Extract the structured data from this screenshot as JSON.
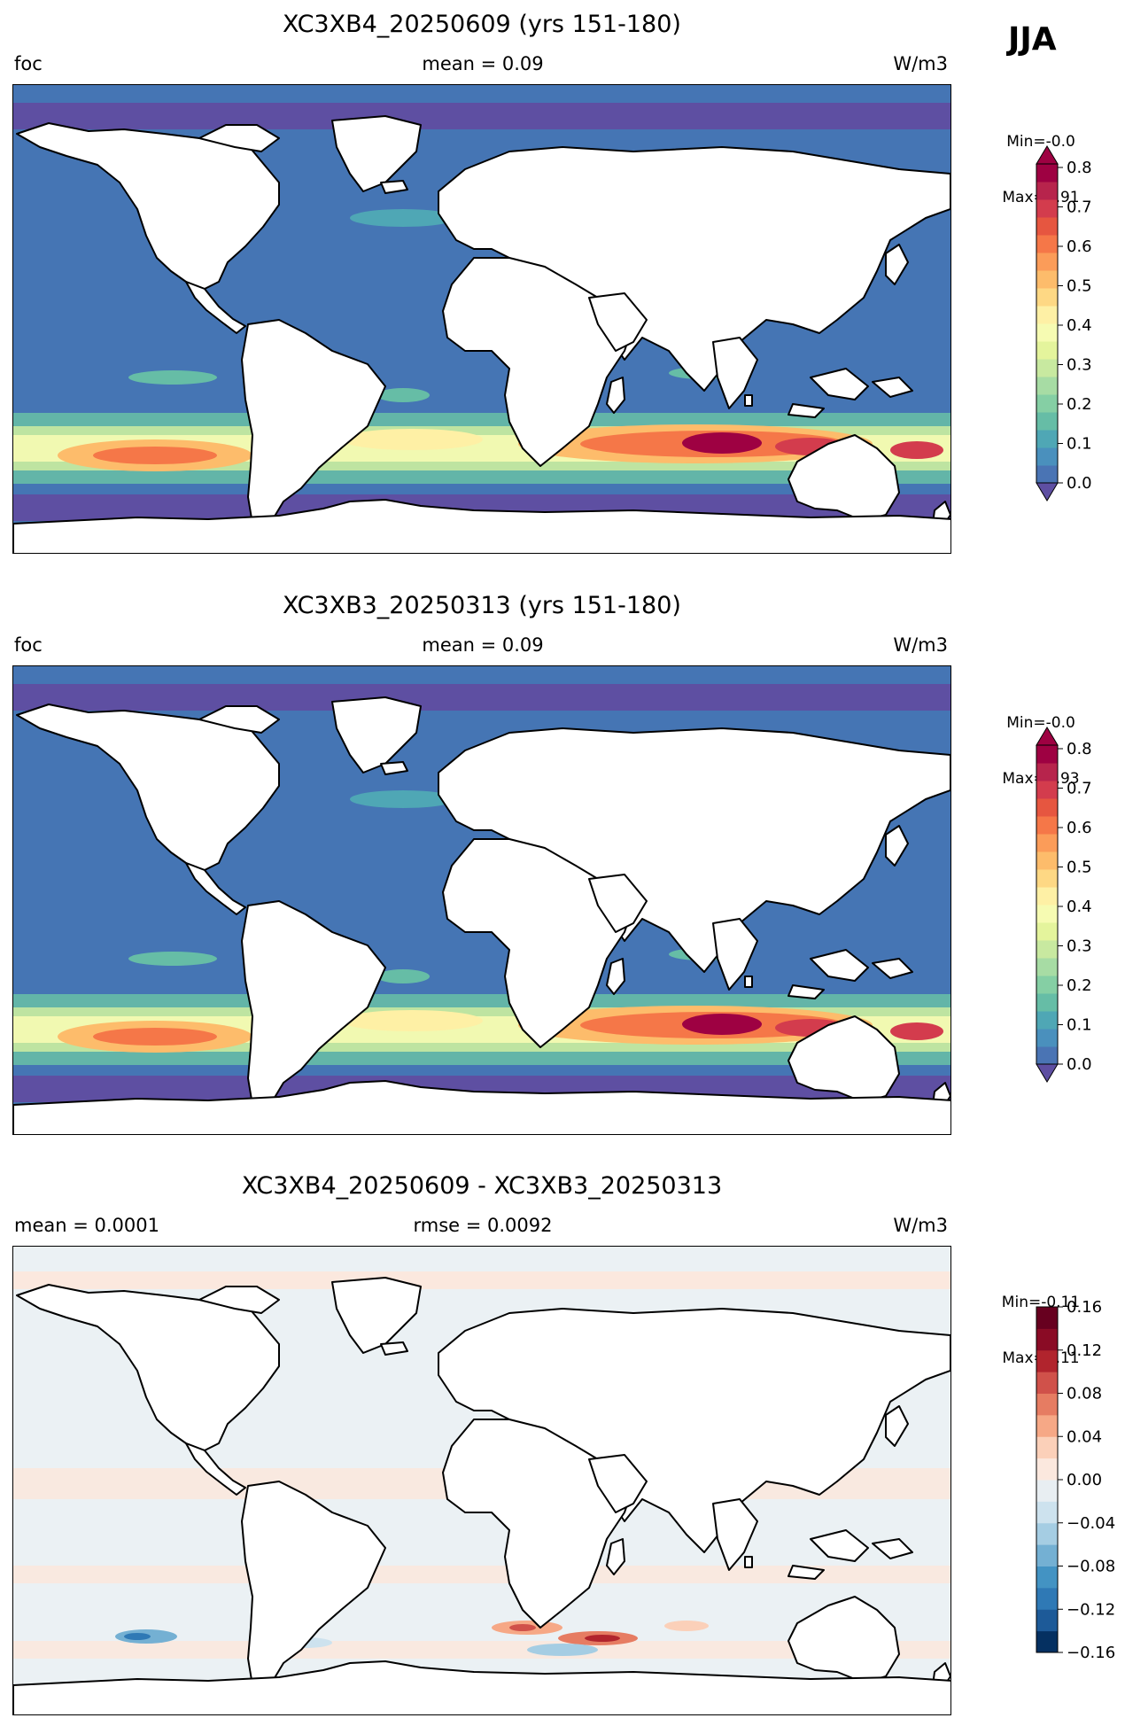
{
  "season": "JJA",
  "continent_color": "#ffffff",
  "coastline_color": "#000000",
  "panels": [
    {
      "title": "XC3XB4_20250609 (yrs 151-180)",
      "left_label": "foc",
      "center_label": "mean = 0.09",
      "right_label": "W/m3",
      "min_label": "Min=-0.0",
      "max_label": "Max=0.91",
      "ocean_base_color": "#4575b4",
      "polar_color": "#5e4fa2",
      "colorbar": {
        "type": "sequential",
        "ticks": [
          "0.8",
          "0.7",
          "0.6",
          "0.5",
          "0.4",
          "0.3",
          "0.2",
          "0.1",
          "0.0"
        ],
        "colors": [
          "#4a74b4",
          "#4a90bd",
          "#4fa7b5",
          "#66bda6",
          "#85cfa4",
          "#a7dca4",
          "#c8e9a0",
          "#e4f49c",
          "#f6fbb2",
          "#fef0a5",
          "#fed884",
          "#fdbc6b",
          "#fb9c59",
          "#f57748",
          "#e65640",
          "#d33c4d",
          "#b7244c",
          "#9e0142"
        ],
        "extend_top": "#9e0142",
        "extend_bottom": "#5e4fa2"
      }
    },
    {
      "title": "XC3XB3_20250313 (yrs 151-180)",
      "left_label": "foc",
      "center_label": "mean = 0.09",
      "right_label": "W/m3",
      "min_label": "Min=-0.0",
      "max_label": "Max=0.93",
      "ocean_base_color": "#4575b4",
      "polar_color": "#5e4fa2",
      "colorbar": {
        "type": "sequential",
        "ticks": [
          "0.8",
          "0.7",
          "0.6",
          "0.5",
          "0.4",
          "0.3",
          "0.2",
          "0.1",
          "0.0"
        ],
        "colors": [
          "#4a74b4",
          "#4a90bd",
          "#4fa7b5",
          "#66bda6",
          "#85cfa4",
          "#a7dca4",
          "#c8e9a0",
          "#e4f49c",
          "#f6fbb2",
          "#fef0a5",
          "#fed884",
          "#fdbc6b",
          "#fb9c59",
          "#f57748",
          "#e65640",
          "#d33c4d",
          "#b7244c",
          "#9e0142"
        ],
        "extend_top": "#9e0142",
        "extend_bottom": "#5e4fa2"
      }
    },
    {
      "title": "XC3XB4_20250609 - XC3XB3_20250313",
      "left_label": "mean = 0.0001",
      "center_label": "rmse = 0.0092",
      "right_label": "W/m3",
      "min_label": "Min=-0.11",
      "max_label": "Max=0.11",
      "ocean_base_color": "#ebf1f4",
      "polar_color": "#e8eef2",
      "colorbar": {
        "type": "diverging",
        "ticks": [
          "0.16",
          "0.12",
          "0.08",
          "0.04",
          "0.00",
          "−0.04",
          "−0.08",
          "−0.12",
          "−0.16"
        ],
        "colors": [
          "#053061",
          "#1d5a98",
          "#2f79b5",
          "#4393c3",
          "#74b0d3",
          "#a5cde3",
          "#cde2ee",
          "#e8eef2",
          "#fbe8de",
          "#fbd0b9",
          "#f6a886",
          "#e67c62",
          "#d0514a",
          "#b1242d",
          "#8a0b25",
          "#67001f"
        ]
      }
    }
  ]
}
